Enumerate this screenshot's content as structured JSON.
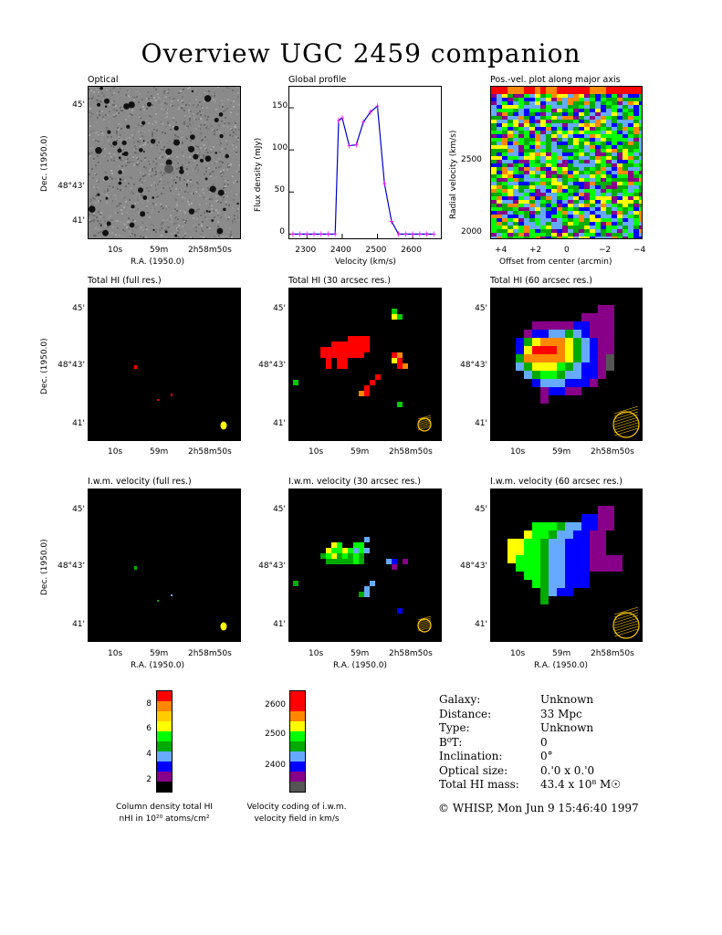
{
  "title": "Overview UGC 2459 companion",
  "panels": {
    "optical": "Optical",
    "profile": "Global profile",
    "pv": "Pos.-vel. plot along major axis",
    "hi_full": "Total HI (full res.)",
    "hi_30": "Total HI (30 arcsec res.)",
    "hi_60": "Total HI (60 arcsec res.)",
    "vel_full": "I.w.m. velocity (full res.)",
    "vel_30": "I.w.m. velocity (30 arcsec res.)",
    "vel_60": "I.w.m. velocity (60 arcsec res.)"
  },
  "axes": {
    "ra_label": "R.A. (1950.0)",
    "dec_label": "Dec. (1950.0)",
    "ra_ticks": [
      "10s",
      "59m",
      "2h58m50s"
    ],
    "dec_ticks": [
      "45'",
      "48°43'",
      "41'"
    ],
    "profile_xlabel": "Velocity (km/s)",
    "profile_ylabel": "Flux density (mJy)",
    "pv_xlabel": "Offset from center (arcmin)",
    "pv_ylabel": "Radial velocity (km/s)",
    "pv_xticks": [
      "+4",
      "+2",
      "0",
      "−2",
      "−4"
    ],
    "pv_yticks": [
      "2500",
      "2000"
    ]
  },
  "chart_data": {
    "type": "line",
    "title": "Global profile",
    "xlabel": "Velocity (km/s)",
    "ylabel": "Flux density (mJy)",
    "xlim": [
      2250,
      2680
    ],
    "ylim": [
      -5,
      175
    ],
    "xticks": [
      2300,
      2400,
      2500,
      2600
    ],
    "yticks": [
      0,
      50,
      100,
      150
    ],
    "x": [
      2260,
      2280,
      2300,
      2320,
      2340,
      2360,
      2380,
      2390,
      2400,
      2420,
      2440,
      2460,
      2480,
      2500,
      2520,
      2540,
      2560,
      2580,
      2600,
      2620,
      2640,
      2660
    ],
    "values": [
      0,
      0,
      0,
      0,
      0,
      0,
      0,
      135,
      138,
      105,
      106,
      133,
      145,
      152,
      60,
      15,
      0,
      0,
      0,
      0,
      0,
      0
    ],
    "color": "#0000cc",
    "errorbar_color": "#ff00ff"
  },
  "colorbars": {
    "density": {
      "ticks": [
        "8",
        "6",
        "4",
        "2"
      ],
      "caption_line1": "Column density total HI",
      "caption_line2": "nHI in 10²⁰ atoms/cm²",
      "colors": [
        "#ff0000",
        "#ff8800",
        "#ffcc00",
        "#ffff00",
        "#00ff00",
        "#00aa00",
        "#66aaff",
        "#0000ff",
        "#880088",
        "#000000"
      ]
    },
    "velocity": {
      "ticks": [
        "2600",
        "2500",
        "2400"
      ],
      "caption_line1": "Velocity coding of i.w.m.",
      "caption_line2": "velocity field in km/s",
      "colors": [
        "#ff0000",
        "#ff0000",
        "#ff8800",
        "#ffff00",
        "#00ff00",
        "#00aa00",
        "#66aaff",
        "#0000ff",
        "#880088",
        "#555555"
      ]
    }
  },
  "info": {
    "rows": [
      {
        "k": "Galaxy:",
        "v": "Unknown"
      },
      {
        "k": "Distance:",
        "v": "33 Mpc"
      },
      {
        "k": "Type:",
        "v": "Unknown"
      },
      {
        "k": "B⁰T:",
        "v": "0"
      },
      {
        "k": "Inclination:",
        "v": "0°"
      },
      {
        "k": "Optical size:",
        "v": "0.'0 x 0.'0"
      },
      {
        "k": "Total HI mass:",
        "v": "43.4 x 10⁸ M☉"
      }
    ],
    "footer": "© WHISP, Mon Jun  9 15:46:40 1997"
  }
}
